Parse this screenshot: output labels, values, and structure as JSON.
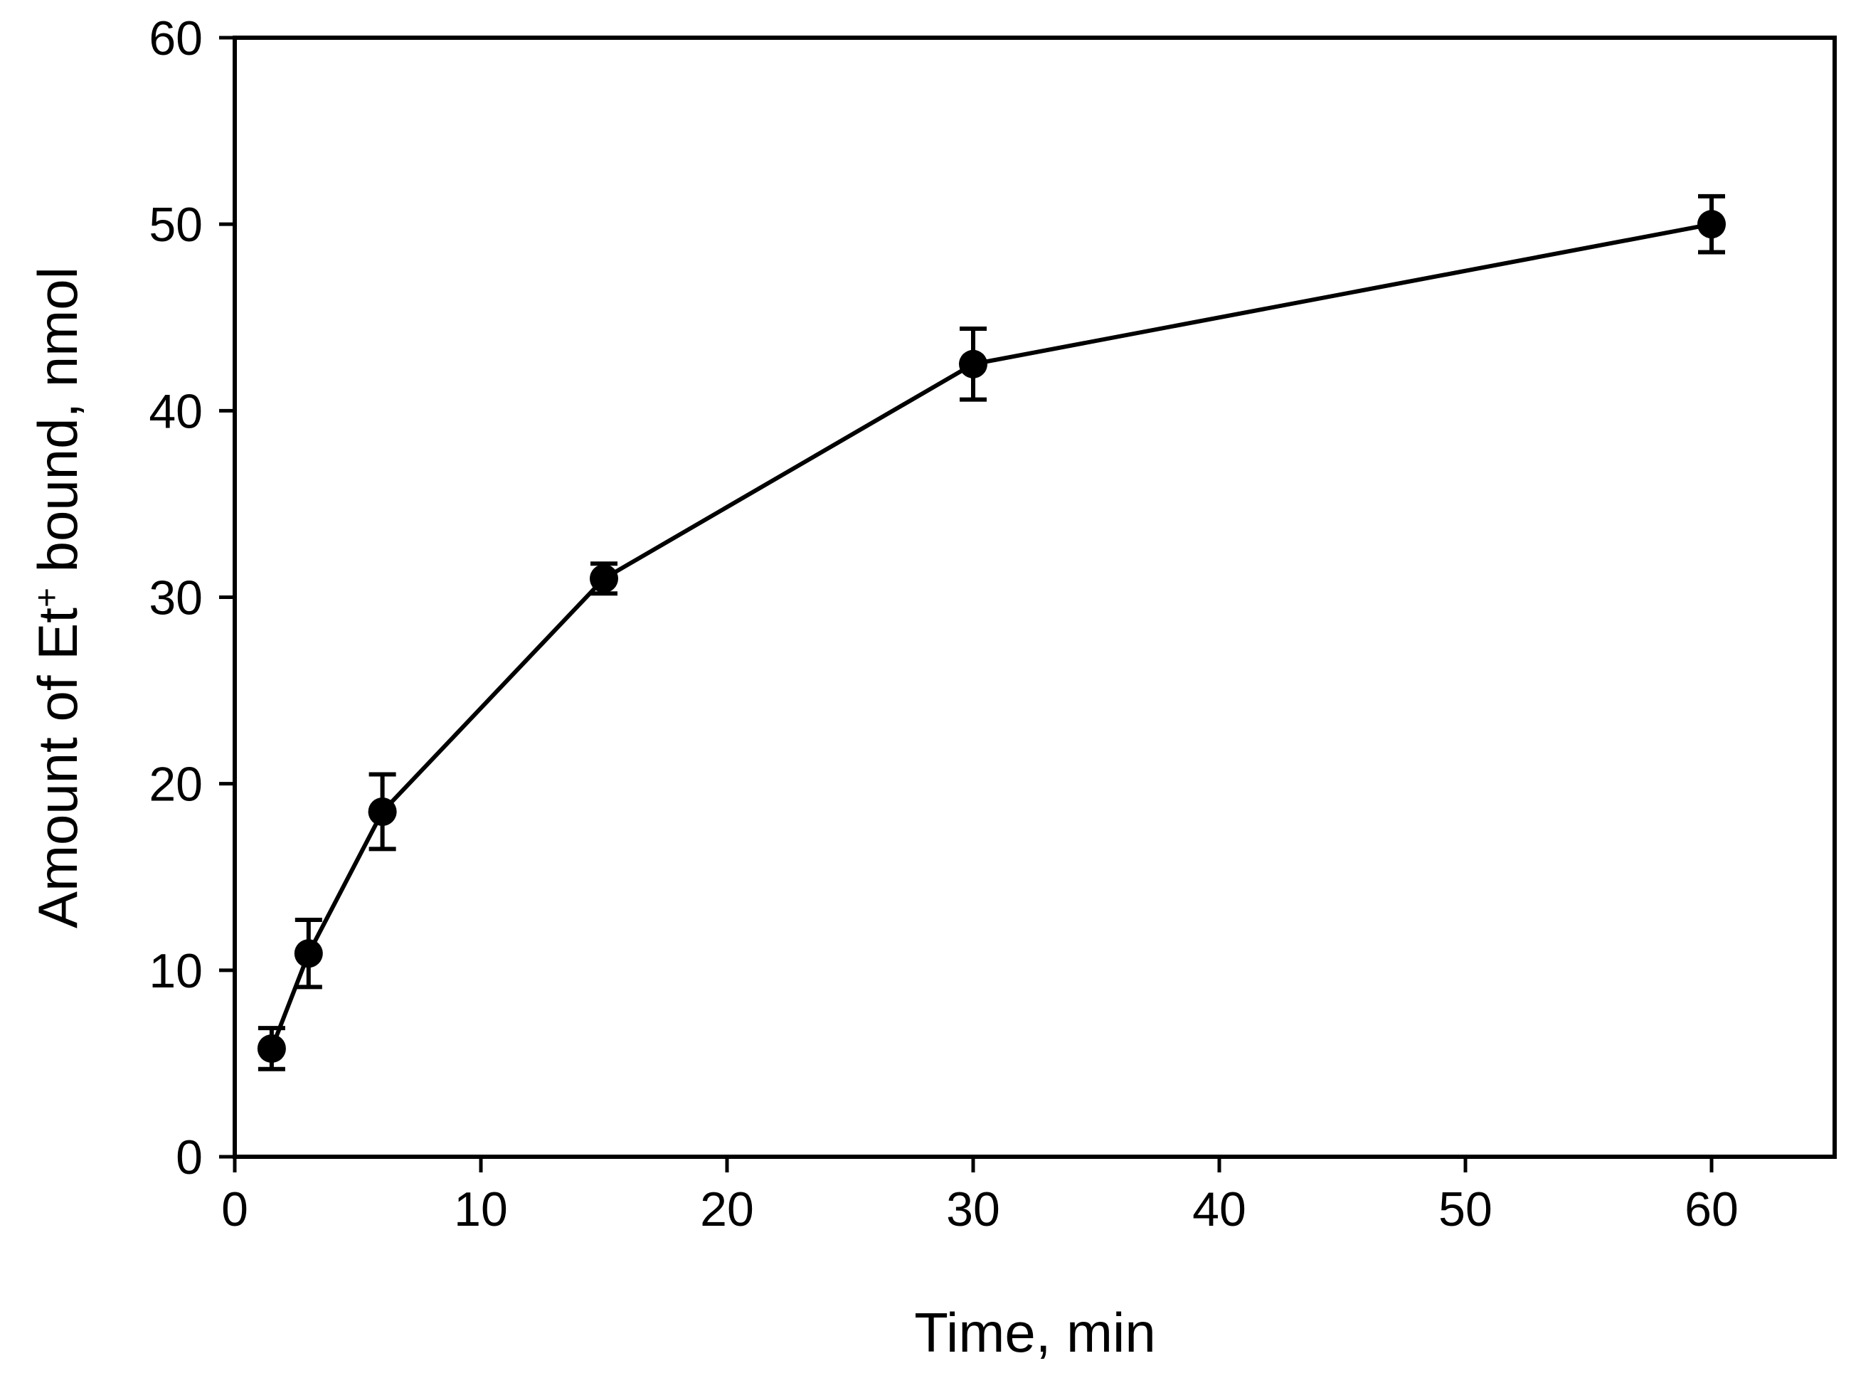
{
  "chart_data": {
    "type": "line",
    "title": "",
    "xlabel": "Time, min",
    "ylabel": {
      "prefix": "Amount of Et",
      "superscript": "+",
      "suffix": " bound, nmol"
    },
    "xlim": [
      0,
      65
    ],
    "ylim": [
      0,
      60
    ],
    "xticks": [
      0,
      10,
      20,
      30,
      40,
      50,
      60
    ],
    "yticks": [
      0,
      10,
      20,
      30,
      40,
      50,
      60
    ],
    "grid": false,
    "series": [
      {
        "name": "Et+ bound",
        "marker": "circle",
        "color": "#000000",
        "x": [
          1.5,
          3,
          6,
          15,
          30,
          60
        ],
        "y": [
          5.8,
          10.9,
          18.5,
          31.0,
          42.5,
          50.0
        ],
        "yerr": [
          1.1,
          1.8,
          2.0,
          0.8,
          1.9,
          1.5
        ]
      }
    ]
  }
}
